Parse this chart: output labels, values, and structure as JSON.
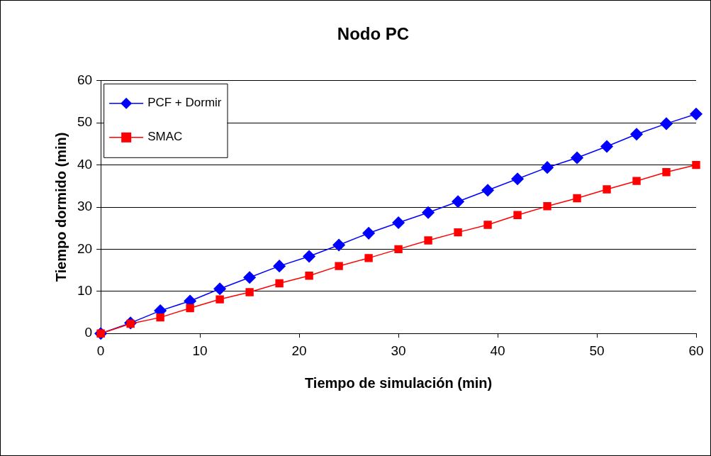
{
  "chart_data": {
    "type": "line",
    "title": "Nodo PC",
    "xlabel": "Tiempo de simulación (min)",
    "ylabel": "Tiempo dormido (min)",
    "x": [
      0,
      3,
      6,
      9,
      12,
      15,
      18,
      21,
      24,
      27,
      30,
      33,
      36,
      39,
      42,
      45,
      48,
      51,
      54,
      57,
      60
    ],
    "series": [
      {
        "name": "PCF + Dormir",
        "color": "#0000ff",
        "marker": "diamond",
        "values": [
          0,
          2.5,
          5.4,
          7.7,
          10.6,
          13.3,
          16,
          18.3,
          21,
          23.8,
          26.3,
          28.7,
          31.3,
          34,
          36.7,
          39.4,
          41.7,
          44.4,
          47.3,
          49.8,
          52.1
        ]
      },
      {
        "name": "SMAC",
        "color": "#ff0000",
        "marker": "square",
        "values": [
          0,
          2.3,
          3.8,
          6,
          8.1,
          9.8,
          11.9,
          13.7,
          16,
          17.9,
          20,
          22.1,
          24,
          25.8,
          28.1,
          30.2,
          32.1,
          34.2,
          36.2,
          38.3,
          40
        ]
      }
    ],
    "xlim": [
      0,
      60
    ],
    "xticks": [
      0,
      10,
      20,
      30,
      40,
      50,
      60
    ],
    "ylim": [
      0,
      60
    ],
    "yticks": [
      0,
      10,
      20,
      30,
      40,
      50,
      60
    ],
    "grid": "y",
    "legend": "top left",
    "line_style": "solid"
  }
}
